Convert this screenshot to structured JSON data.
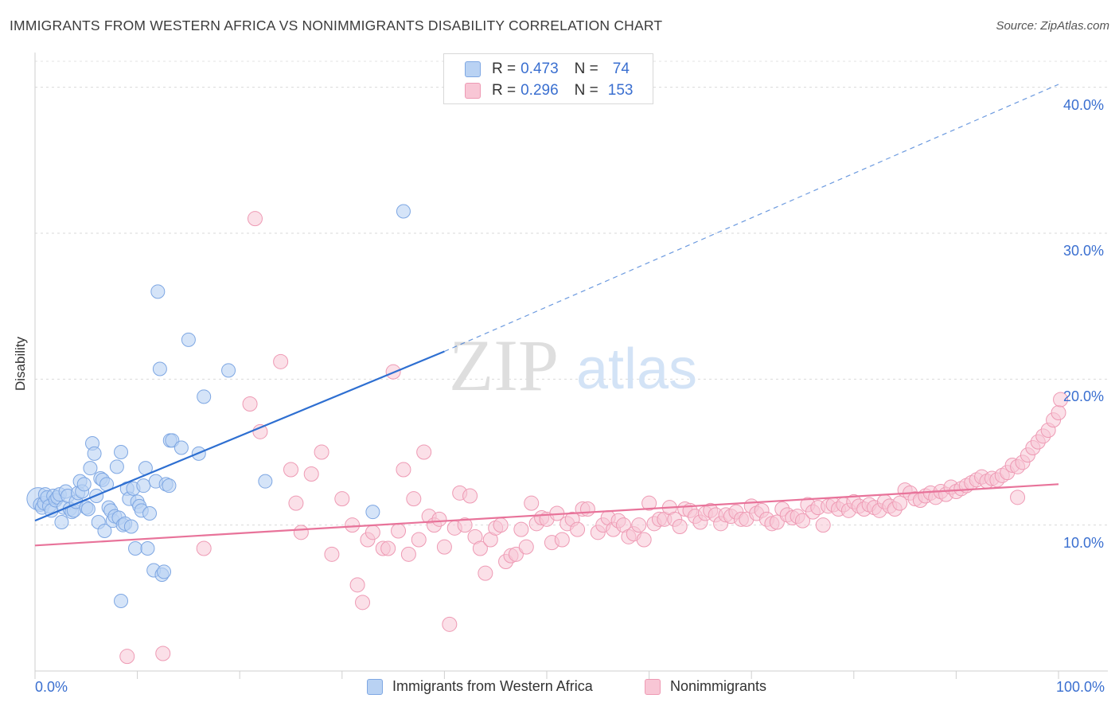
{
  "header": {
    "title": "IMMIGRANTS FROM WESTERN AFRICA VS NONIMMIGRANTS DISABILITY CORRELATION CHART",
    "source": "Source: ZipAtlas.com"
  },
  "legend": {
    "series1": {
      "r_label": "R =",
      "r_value": "0.473",
      "n_label": "N =",
      "n_value": "74"
    },
    "series2": {
      "r_label": "R =",
      "r_value": "0.296",
      "n_label": "N =",
      "n_value": "153"
    }
  },
  "watermark": {
    "part1": "ZIP",
    "part2": "atlas"
  },
  "colors": {
    "blue_fill": "#b9d2f3",
    "blue_stroke": "#7ea7e3",
    "blue_line": "#2e6fd1",
    "pink_fill": "#f8c6d5",
    "pink_stroke": "#ee9ab4",
    "pink_line": "#e8739a",
    "tick_text": "#3a6fd0"
  },
  "chart_data": {
    "type": "scatter",
    "title": "IMMIGRANTS FROM WESTERN AFRICA VS NONIMMIGRANTS DISABILITY CORRELATION CHART",
    "xlabel": "",
    "ylabel": "Disability",
    "xlim": [
      0,
      100
    ],
    "ylim": [
      0,
      42
    ],
    "x_ticks": [
      "0.0%",
      "100.0%"
    ],
    "y_ticks": [
      {
        "value": 10,
        "label": "10.0%"
      },
      {
        "value": 20,
        "label": "20.0%"
      },
      {
        "value": 30,
        "label": "30.0%"
      },
      {
        "value": 40,
        "label": "40.0%"
      }
    ],
    "grid": true,
    "legend_position": "top-center",
    "series": [
      {
        "name": "Immigrants from Western Africa",
        "r": 0.473,
        "n": 74,
        "trend": {
          "x": [
            0,
            40
          ],
          "y": [
            10.3,
            21.9
          ],
          "dashed_to": {
            "x": 100,
            "y": 40.2
          }
        },
        "points": [
          [
            0.3,
            11.8
          ],
          [
            0.5,
            11.4
          ],
          [
            0.7,
            11.2
          ],
          [
            0.9,
            11.5
          ],
          [
            1.0,
            12.1
          ],
          [
            1.2,
            11.9
          ],
          [
            1.4,
            11.3
          ],
          [
            1.6,
            11.0
          ],
          [
            1.8,
            12.0
          ],
          [
            2.0,
            11.7
          ],
          [
            2.2,
            11.9
          ],
          [
            2.4,
            12.1
          ],
          [
            2.6,
            10.2
          ],
          [
            2.8,
            11.2
          ],
          [
            3.0,
            12.3
          ],
          [
            3.2,
            12.0
          ],
          [
            3.4,
            11.1
          ],
          [
            3.6,
            10.9
          ],
          [
            3.8,
            11.0
          ],
          [
            4.0,
            11.6
          ],
          [
            4.2,
            12.2
          ],
          [
            4.4,
            13.0
          ],
          [
            4.6,
            12.3
          ],
          [
            4.8,
            12.8
          ],
          [
            5.0,
            11.2
          ],
          [
            5.2,
            11.1
          ],
          [
            5.4,
            13.9
          ],
          [
            5.6,
            15.6
          ],
          [
            5.8,
            14.9
          ],
          [
            6.0,
            12.0
          ],
          [
            6.2,
            10.2
          ],
          [
            6.4,
            13.2
          ],
          [
            6.6,
            13.1
          ],
          [
            6.8,
            9.6
          ],
          [
            7.0,
            12.8
          ],
          [
            7.2,
            11.2
          ],
          [
            7.4,
            11.0
          ],
          [
            7.6,
            10.3
          ],
          [
            7.8,
            10.6
          ],
          [
            8.0,
            14.0
          ],
          [
            8.2,
            10.5
          ],
          [
            8.4,
            15.0
          ],
          [
            8.6,
            10.0
          ],
          [
            8.8,
            10.1
          ],
          [
            9.0,
            12.5
          ],
          [
            9.2,
            11.8
          ],
          [
            9.4,
            9.9
          ],
          [
            9.6,
            12.5
          ],
          [
            9.8,
            8.4
          ],
          [
            10.0,
            11.6
          ],
          [
            10.2,
            11.3
          ],
          [
            10.4,
            11.0
          ],
          [
            10.6,
            12.7
          ],
          [
            10.8,
            13.9
          ],
          [
            11.0,
            8.4
          ],
          [
            11.2,
            10.8
          ],
          [
            11.6,
            6.9
          ],
          [
            11.8,
            13.0
          ],
          [
            12.0,
            26.0
          ],
          [
            12.2,
            20.7
          ],
          [
            12.4,
            6.6
          ],
          [
            12.6,
            6.8
          ],
          [
            12.8,
            12.8
          ],
          [
            13.1,
            12.7
          ],
          [
            13.2,
            15.8
          ],
          [
            13.4,
            15.8
          ],
          [
            14.3,
            15.3
          ],
          [
            15.0,
            22.7
          ],
          [
            16.0,
            14.9
          ],
          [
            16.5,
            18.8
          ],
          [
            18.9,
            20.6
          ],
          [
            22.5,
            13.0
          ],
          [
            33.0,
            10.9
          ],
          [
            36.0,
            31.5
          ],
          [
            8.4,
            4.8
          ]
        ]
      },
      {
        "name": "Nonimmigrants",
        "r": 0.296,
        "n": 153,
        "trend": {
          "x": [
            0,
            100
          ],
          "y": [
            8.6,
            12.8
          ]
        },
        "points": [
          [
            9,
            1.0
          ],
          [
            12.5,
            1.2
          ],
          [
            16.5,
            8.4
          ],
          [
            21,
            18.3
          ],
          [
            21.5,
            31.0
          ],
          [
            22,
            16.4
          ],
          [
            24,
            21.2
          ],
          [
            25,
            13.8
          ],
          [
            25.5,
            11.5
          ],
          [
            26,
            9.5
          ],
          [
            27,
            13.5
          ],
          [
            28,
            15.0
          ],
          [
            29,
            8.0
          ],
          [
            30,
            11.8
          ],
          [
            31,
            10.0
          ],
          [
            31.5,
            5.9
          ],
          [
            32,
            4.7
          ],
          [
            32.5,
            9.0
          ],
          [
            33,
            9.5
          ],
          [
            34,
            8.4
          ],
          [
            34.5,
            8.4
          ],
          [
            35,
            20.5
          ],
          [
            35.5,
            9.6
          ],
          [
            36,
            13.8
          ],
          [
            36.5,
            8.0
          ],
          [
            37,
            11.8
          ],
          [
            37.5,
            9.0
          ],
          [
            38,
            15.0
          ],
          [
            38.5,
            10.6
          ],
          [
            39,
            10.0
          ],
          [
            39.5,
            10.4
          ],
          [
            40,
            8.5
          ],
          [
            40.5,
            3.2
          ],
          [
            41,
            9.8
          ],
          [
            41.5,
            12.2
          ],
          [
            42,
            10.0
          ],
          [
            42.5,
            12.0
          ],
          [
            43,
            9.2
          ],
          [
            43.5,
            8.4
          ],
          [
            44,
            6.7
          ],
          [
            44.5,
            9.0
          ],
          [
            45,
            9.8
          ],
          [
            45.5,
            10.0
          ],
          [
            46,
            7.5
          ],
          [
            46.5,
            7.9
          ],
          [
            47,
            8.0
          ],
          [
            47.5,
            9.7
          ],
          [
            48,
            8.5
          ],
          [
            48.5,
            11.5
          ],
          [
            49,
            10.1
          ],
          [
            49.5,
            10.5
          ],
          [
            50,
            10.4
          ],
          [
            50.5,
            8.8
          ],
          [
            51,
            10.8
          ],
          [
            51.5,
            9.0
          ],
          [
            52,
            10.1
          ],
          [
            52.5,
            10.4
          ],
          [
            53,
            9.7
          ],
          [
            53.5,
            11.1
          ],
          [
            54,
            11.1
          ],
          [
            55,
            9.5
          ],
          [
            55.5,
            10.0
          ],
          [
            56,
            10.5
          ],
          [
            56.5,
            9.7
          ],
          [
            57,
            10.3
          ],
          [
            57.5,
            10.0
          ],
          [
            58,
            9.2
          ],
          [
            58.5,
            9.4
          ],
          [
            59,
            10.0
          ],
          [
            59.5,
            9.0
          ],
          [
            60,
            11.5
          ],
          [
            60.5,
            10.1
          ],
          [
            61,
            10.4
          ],
          [
            61.5,
            10.4
          ],
          [
            62,
            11.2
          ],
          [
            62.5,
            10.4
          ],
          [
            63,
            9.9
          ],
          [
            63.5,
            11.1
          ],
          [
            64,
            11.0
          ],
          [
            64.5,
            10.6
          ],
          [
            65,
            10.2
          ],
          [
            65.5,
            10.8
          ],
          [
            66,
            11.0
          ],
          [
            66.5,
            10.7
          ],
          [
            67,
            10.1
          ],
          [
            67.5,
            10.7
          ],
          [
            68,
            10.6
          ],
          [
            68.5,
            10.9
          ],
          [
            69,
            10.4
          ],
          [
            69.5,
            10.4
          ],
          [
            70,
            11.3
          ],
          [
            70.5,
            10.8
          ],
          [
            71,
            11.0
          ],
          [
            71.5,
            10.4
          ],
          [
            72,
            10.1
          ],
          [
            72.5,
            10.2
          ],
          [
            73,
            11.1
          ],
          [
            73.5,
            10.7
          ],
          [
            74,
            10.5
          ],
          [
            74.5,
            10.6
          ],
          [
            75,
            10.3
          ],
          [
            75.5,
            11.4
          ],
          [
            76,
            10.9
          ],
          [
            76.5,
            11.2
          ],
          [
            77,
            10.0
          ],
          [
            77.5,
            11.3
          ],
          [
            78,
            11.4
          ],
          [
            78.5,
            11.1
          ],
          [
            79,
            11.4
          ],
          [
            79.5,
            11.0
          ],
          [
            80,
            11.6
          ],
          [
            80.5,
            11.3
          ],
          [
            81,
            11.1
          ],
          [
            81.5,
            11.4
          ],
          [
            82,
            11.2
          ],
          [
            82.5,
            11.0
          ],
          [
            83,
            11.6
          ],
          [
            83.5,
            11.3
          ],
          [
            84,
            11.1
          ],
          [
            84.5,
            11.5
          ],
          [
            85,
            12.4
          ],
          [
            85.5,
            12.2
          ],
          [
            86,
            11.8
          ],
          [
            86.5,
            11.7
          ],
          [
            87,
            12.0
          ],
          [
            87.5,
            12.2
          ],
          [
            88,
            11.9
          ],
          [
            88.5,
            12.3
          ],
          [
            89,
            12.1
          ],
          [
            89.5,
            12.6
          ],
          [
            90,
            12.3
          ],
          [
            90.5,
            12.5
          ],
          [
            91,
            12.7
          ],
          [
            91.5,
            12.9
          ],
          [
            92,
            13.1
          ],
          [
            92.5,
            13.3
          ],
          [
            93,
            13.0
          ],
          [
            93.5,
            13.2
          ],
          [
            94,
            13.1
          ],
          [
            94.5,
            13.4
          ],
          [
            95,
            13.6
          ],
          [
            95.5,
            14.1
          ],
          [
            96,
            14.0
          ],
          [
            96.5,
            14.3
          ],
          [
            97,
            14.8
          ],
          [
            97.5,
            15.3
          ],
          [
            98,
            15.7
          ],
          [
            98.5,
            16.1
          ],
          [
            99,
            16.5
          ],
          [
            99.5,
            17.2
          ],
          [
            100,
            17.7
          ],
          [
            100.2,
            18.6
          ],
          [
            96,
            11.9
          ]
        ]
      }
    ]
  },
  "x_axis": {
    "left_label": "0.0%",
    "right_label": "100.0%"
  },
  "bottom_legend": {
    "series1_label": "Immigrants from Western Africa",
    "series2_label": "Nonimmigrants"
  }
}
